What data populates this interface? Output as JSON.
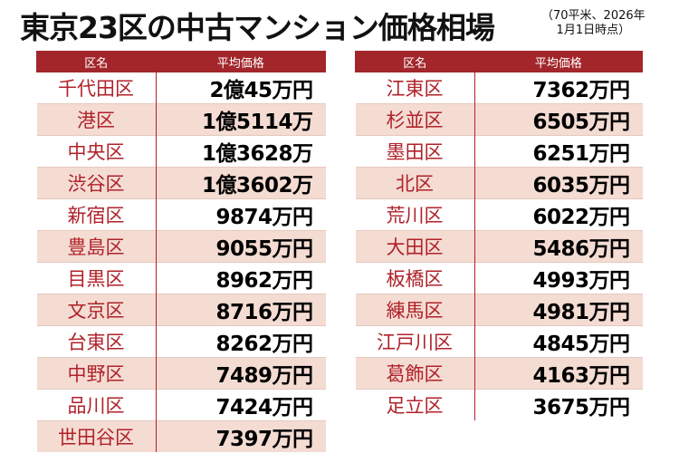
{
  "header": {
    "title": "東京23区の中古マンション価格相場",
    "note": [
      "（70平米、2026年",
      "1月1日時点）"
    ]
  },
  "tables": [
    {
      "columns": [
        "区名",
        "平均価格"
      ],
      "rows": [
        [
          "千代田区",
          "2億45万円"
        ],
        [
          "港区",
          "1億5114万"
        ],
        [
          "中央区",
          "1億3628万"
        ],
        [
          "渋谷区",
          "1億3602万"
        ],
        [
          "新宿区",
          "9874万円"
        ],
        [
          "豊島区",
          "9055万円"
        ],
        [
          "目黒区",
          "8962万円"
        ],
        [
          "文京区",
          "8716万円"
        ],
        [
          "台東区",
          "8262万円"
        ],
        [
          "中野区",
          "7489万円"
        ],
        [
          "品川区",
          "7424万円"
        ],
        [
          "世田谷区",
          "7397万円"
        ]
      ]
    },
    {
      "columns": [
        "区名",
        "平均価格"
      ],
      "rows": [
        [
          "江東区",
          "7362万円"
        ],
        [
          "杉並区",
          "6505万円"
        ],
        [
          "墨田区",
          "6251万円"
        ],
        [
          "北区",
          "6035万円"
        ],
        [
          "荒川区",
          "6022万円"
        ],
        [
          "大田区",
          "5486万円"
        ],
        [
          "板橋区",
          "4993万円"
        ],
        [
          "練馬区",
          "4981万円"
        ],
        [
          "江戸川区",
          "4845万円"
        ],
        [
          "葛飾区",
          "4163万円"
        ],
        [
          "足立区",
          "3675万円"
        ]
      ]
    }
  ]
}
